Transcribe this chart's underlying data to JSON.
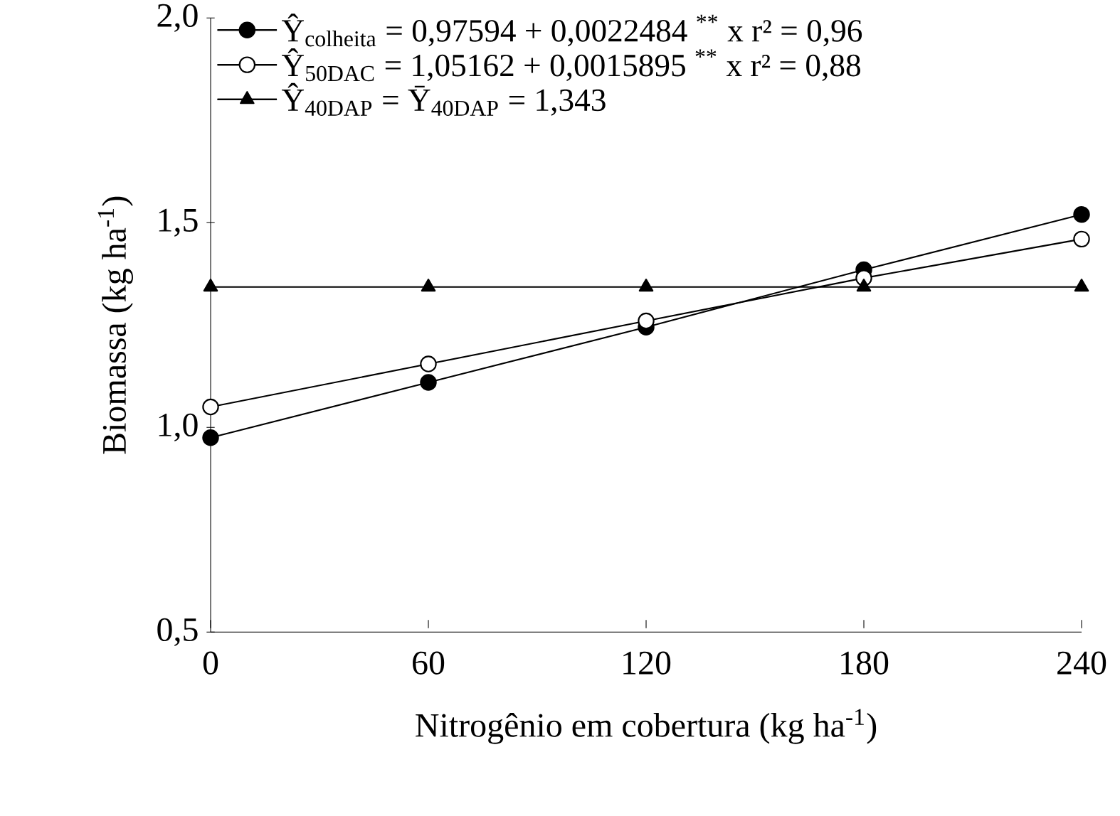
{
  "chart_data": {
    "type": "line",
    "xlabel": "Nitrogênio em cobertura (kg ha$^{-1}$)",
    "ylabel": "Biomassa (kg ha$^{-1}$)",
    "x": [
      0,
      60,
      120,
      180,
      240
    ],
    "series": [
      {
        "name": "Ŷ$_{colheita}$ = 0,97594 + 0,0022484 $^{**}$ x    r² = 0,96",
        "color": "#000000",
        "marker": "circle",
        "values": [
          0.975,
          1.11,
          1.245,
          1.385,
          1.52
        ]
      },
      {
        "name": "Ŷ$_{50DAC}$ = 1,05162 + 0,0015895 $^{**}$ x    r² = 0,88",
        "color": "#000000",
        "marker": "circle",
        "values": [
          1.05,
          1.155,
          1.26,
          1.365,
          1.46
        ]
      },
      {
        "name": "Ŷ$_{40DAP}$ = Ȳ$_{40DAP}$ = 1,343",
        "color": "#000000",
        "marker": "triangle",
        "values": [
          1.343,
          1.343,
          1.343,
          1.343,
          1.343
        ]
      }
    ],
    "xlim": [
      0,
      240
    ],
    "xticks": [
      0,
      60,
      120,
      180,
      240
    ],
    "ylim": [
      0.5,
      2.0
    ],
    "yticks": [
      {
        "value": 0.5,
        "label": "0,5"
      },
      {
        "value": 1.0,
        "label": "1,0"
      },
      {
        "value": 1.5,
        "label": "1,5"
      },
      {
        "value": 2.0,
        "label": "2,0"
      }
    ],
    "legend": "top left",
    "grid": false,
    "line_style": "solid"
  }
}
